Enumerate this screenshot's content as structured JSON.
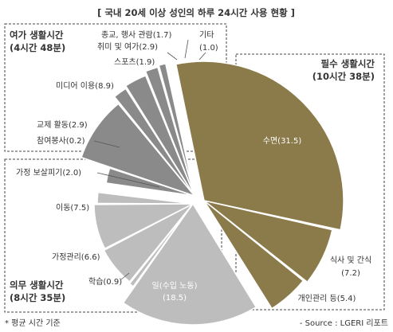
{
  "chart_data": {
    "type": "pie",
    "title": "[ 국내 20세 이상 성인의 하루 24시간 사용 현황 ]",
    "unit": "hours",
    "groups": [
      {
        "name": "여가 생활시간",
        "total": "(4시간 48분)",
        "color": "#8a8a8a",
        "slices": [
          {
            "label": "참여봉사",
            "value": 0.2,
            "display": "참여봉사(0.2)"
          },
          {
            "label": "교제 활동",
            "value": 2.9,
            "display": "교제 활동(2.9)"
          },
          {
            "label": "미디어 이용",
            "value": 8.9,
            "display": "미디어 이용(8.9)"
          },
          {
            "label": "스포츠",
            "value": 1.9,
            "display": "스포츠(1.9)"
          },
          {
            "label": "취미 및 여가",
            "value": 2.9,
            "display": "취미 및 여가(2.9)"
          },
          {
            "label": "종교, 행사 관람",
            "value": 1.7,
            "display": "종교, 행사 관람(1.7)"
          },
          {
            "label": "기타",
            "value": 1.0,
            "display": "기타 (1.0)"
          }
        ]
      },
      {
        "name": "필수 생활시간",
        "total": "(10시간 38분)",
        "color": "#8b7a4a",
        "slices": [
          {
            "label": "수면",
            "value": 31.5,
            "display": "수면(31.5)"
          },
          {
            "label": "식사 및 간식",
            "value": 7.2,
            "display": "식사 및 간식 (7.2)"
          },
          {
            "label": "개인관리 등",
            "value": 5.4,
            "display": "개인관리 등(5.4)"
          }
        ]
      },
      {
        "name": "의무 생활시간",
        "total": "(8시간 35분)",
        "color": "#bdbdbd",
        "slices": [
          {
            "label": "일(수입 노동)",
            "value": 18.5,
            "display": "일(수입 노동) (18.5)"
          },
          {
            "label": "학습",
            "value": 0.9,
            "display": "학습(0.9)"
          },
          {
            "label": "가정관리",
            "value": 6.6,
            "display": "가정관리(6.6)"
          },
          {
            "label": "이동",
            "value": 7.5,
            "display": "이동(7.5)"
          },
          {
            "label": "가정 보살피기",
            "value": 2.0,
            "display": "가정 보살피기(2.0)"
          }
        ]
      }
    ]
  },
  "footnote": "* 평균 시간 기준",
  "source": "- Source : LGERI 리포트"
}
